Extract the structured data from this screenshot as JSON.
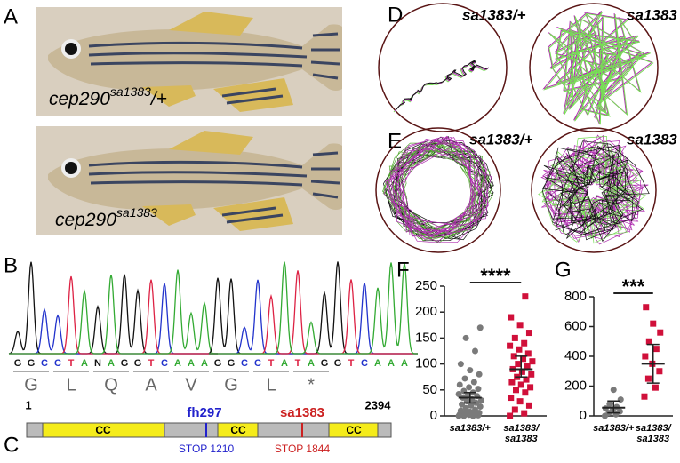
{
  "panels": {
    "A": {
      "letter": "A",
      "labels": [
        {
          "base": "cep290",
          "sup": "sa1383",
          "suffix": "/+"
        },
        {
          "base": "cep290",
          "sup": "sa1383"
        }
      ]
    },
    "B": {
      "letter": "B",
      "sequences": [
        [
          "G",
          "G",
          "C",
          "C",
          "T",
          "A",
          "N",
          "A",
          "G",
          "G",
          "T",
          "C",
          "A",
          "A",
          "A"
        ],
        [
          "G",
          "G",
          "C",
          "C",
          "T",
          "A",
          "T",
          "A",
          "G",
          "G",
          "T",
          "C",
          "A",
          "A",
          "A"
        ]
      ],
      "amino_acids": [
        [
          "G",
          "L",
          "Q",
          "A",
          "V"
        ],
        [
          "G",
          "L",
          "*"
        ]
      ]
    },
    "C": {
      "letter": "C",
      "start": 1,
      "end": 2394,
      "domains": [
        "CC",
        "CC",
        "CC"
      ],
      "alleles": [
        {
          "name": "fh297",
          "stop": "STOP 1210"
        },
        {
          "name": "sa1383",
          "stop": "STOP 1844"
        }
      ]
    },
    "D": {
      "letter": "D",
      "labels": [
        "sa1383/+",
        "sa1383"
      ]
    },
    "E": {
      "letter": "E",
      "labels": [
        "sa1383/+",
        "sa1383"
      ]
    }
  },
  "chart_data": [
    {
      "type": "scatter",
      "panel_label": "F",
      "significance": "****",
      "categories": [
        "sa1383/+",
        "sa1383/\nsa1383"
      ],
      "ylim": [
        0,
        250
      ],
      "yticks": [
        0,
        50,
        100,
        150,
        200,
        250
      ],
      "series": [
        {
          "color": "#7a7a7a",
          "values": [
            0,
            0,
            0,
            1,
            2,
            3,
            4,
            5,
            6,
            8,
            10,
            12,
            15,
            18,
            20,
            22,
            25,
            28,
            30,
            32,
            35,
            38,
            40,
            42,
            45,
            48,
            52,
            55,
            60,
            65,
            72,
            80,
            88,
            100,
            125,
            150,
            170
          ],
          "mean": 35,
          "ci": [
            25,
            45
          ]
        },
        {
          "color": "#d0103a",
          "values": [
            0,
            5,
            12,
            20,
            28,
            35,
            45,
            50,
            55,
            60,
            65,
            70,
            75,
            80,
            85,
            90,
            95,
            100,
            105,
            110,
            115,
            120,
            128,
            135,
            140,
            150,
            160,
            175,
            190,
            230
          ],
          "mean": 90,
          "ci": [
            75,
            115
          ]
        }
      ]
    },
    {
      "type": "scatter",
      "panel_label": "G",
      "significance": "***",
      "categories": [
        "sa1383/+",
        "sa1383/\nsa1383"
      ],
      "ylim": [
        0,
        800
      ],
      "yticks": [
        0,
        200,
        400,
        600,
        800
      ],
      "series": [
        {
          "color": "#7a7a7a",
          "values": [
            0,
            10,
            20,
            30,
            40,
            50,
            60,
            80,
            110,
            175
          ],
          "mean": 55,
          "ci": [
            20,
            100
          ]
        },
        {
          "color": "#d0103a",
          "values": [
            130,
            190,
            250,
            300,
            350,
            400,
            450,
            500,
            560,
            620,
            730
          ],
          "mean": 350,
          "ci": [
            220,
            480
          ]
        }
      ]
    }
  ]
}
